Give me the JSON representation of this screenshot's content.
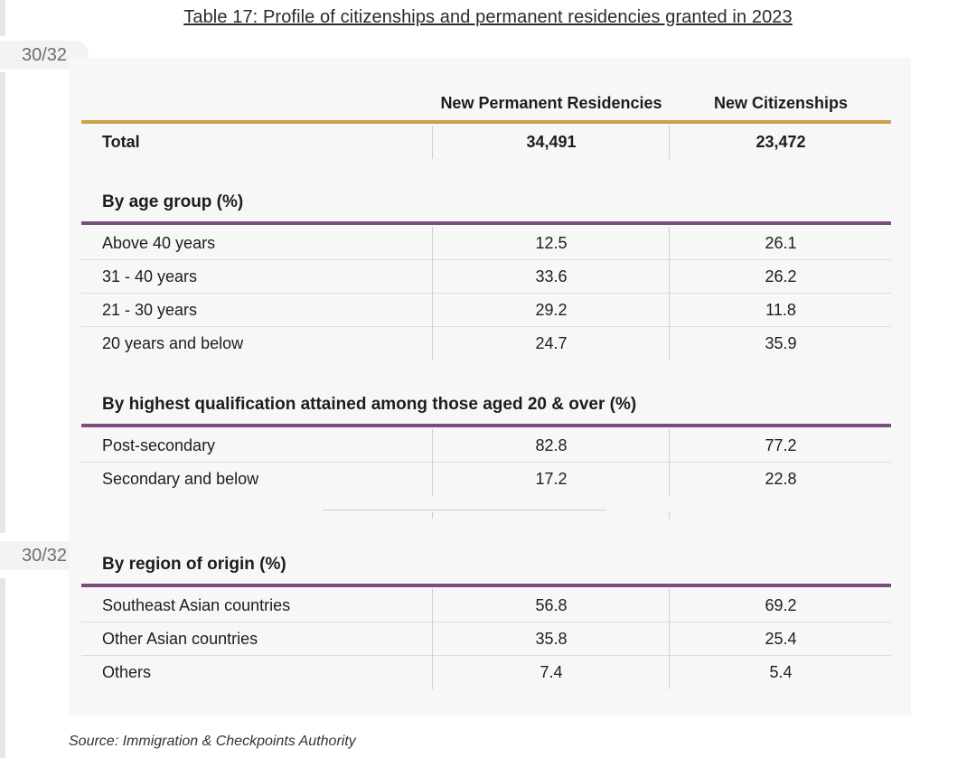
{
  "title": "Table 17: Profile of citizenships and permanent residencies granted in 2023",
  "page_counter": "30/32",
  "columns": [
    "New Permanent Residencies",
    "New Citizenships"
  ],
  "total": {
    "label": "Total",
    "pr": "34,491",
    "citizenship": "23,472"
  },
  "age_group": {
    "heading": "By age group (%)",
    "rows": [
      {
        "label": "Above 40 years",
        "pr": "12.5",
        "citizenship": "26.1"
      },
      {
        "label": "31 - 40 years",
        "pr": "33.6",
        "citizenship": "26.2"
      },
      {
        "label": "21 - 30 years",
        "pr": "29.2",
        "citizenship": "11.8"
      },
      {
        "label": "20 years and below",
        "pr": "24.7",
        "citizenship": "35.9"
      }
    ]
  },
  "qualification": {
    "heading": "By highest qualification attained among those aged 20 & over (%)",
    "rows": [
      {
        "label": "Post-secondary",
        "pr": "82.8",
        "citizenship": "77.2"
      },
      {
        "label": "Secondary and below",
        "pr": "17.2",
        "citizenship": "22.8"
      }
    ]
  },
  "region": {
    "heading": "By region of origin (%)",
    "rows": [
      {
        "label": "Southeast Asian countries",
        "pr": "56.8",
        "citizenship": "69.2"
      },
      {
        "label": "Other Asian countries",
        "pr": "35.8",
        "citizenship": "25.4"
      },
      {
        "label": "Others",
        "pr": "7.4",
        "citizenship": "5.4"
      }
    ]
  },
  "source": "Source: Immigration & Checkpoints Authority",
  "colors": {
    "gold_rule": "#c9a34a",
    "purple_rule": "#7a4d7f",
    "panel_bg": "#f7f7f7"
  }
}
